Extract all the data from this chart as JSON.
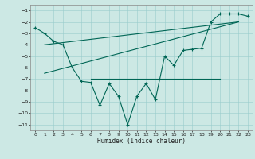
{
  "title": "",
  "xlabel": "Humidex (Indice chaleur)",
  "background_color": "#cce8e4",
  "grid_color": "#99cccc",
  "line_color": "#006655",
  "xlim": [
    -0.5,
    23.5
  ],
  "ylim": [
    -11.5,
    -0.5
  ],
  "yticks": [
    -11,
    -10,
    -9,
    -8,
    -7,
    -6,
    -5,
    -4,
    -3,
    -2,
    -1
  ],
  "xticks": [
    0,
    1,
    2,
    3,
    4,
    5,
    6,
    7,
    8,
    9,
    10,
    11,
    12,
    13,
    14,
    15,
    16,
    17,
    18,
    19,
    20,
    21,
    22,
    23
  ],
  "main_x": [
    0,
    1,
    2,
    3,
    4,
    5,
    6,
    7,
    8,
    9,
    10,
    11,
    12,
    13,
    14,
    15,
    16,
    17,
    18,
    19,
    20,
    21,
    22,
    23
  ],
  "main_y": [
    -2.5,
    -3.0,
    -3.7,
    -4.0,
    -6.0,
    -7.2,
    -7.3,
    -9.3,
    -7.4,
    -8.5,
    -11.0,
    -8.5,
    -7.4,
    -8.8,
    -5.0,
    -5.8,
    -4.5,
    -4.4,
    -4.3,
    -2.0,
    -1.3,
    -1.3,
    -1.3,
    -1.5
  ],
  "line1_x": [
    1,
    22
  ],
  "line1_y": [
    -4.0,
    -2.0
  ],
  "line2_x": [
    1,
    22
  ],
  "line2_y": [
    -6.5,
    -2.0
  ],
  "hline_x": [
    6,
    20
  ],
  "hline_y": [
    -7.0,
    -7.0
  ]
}
